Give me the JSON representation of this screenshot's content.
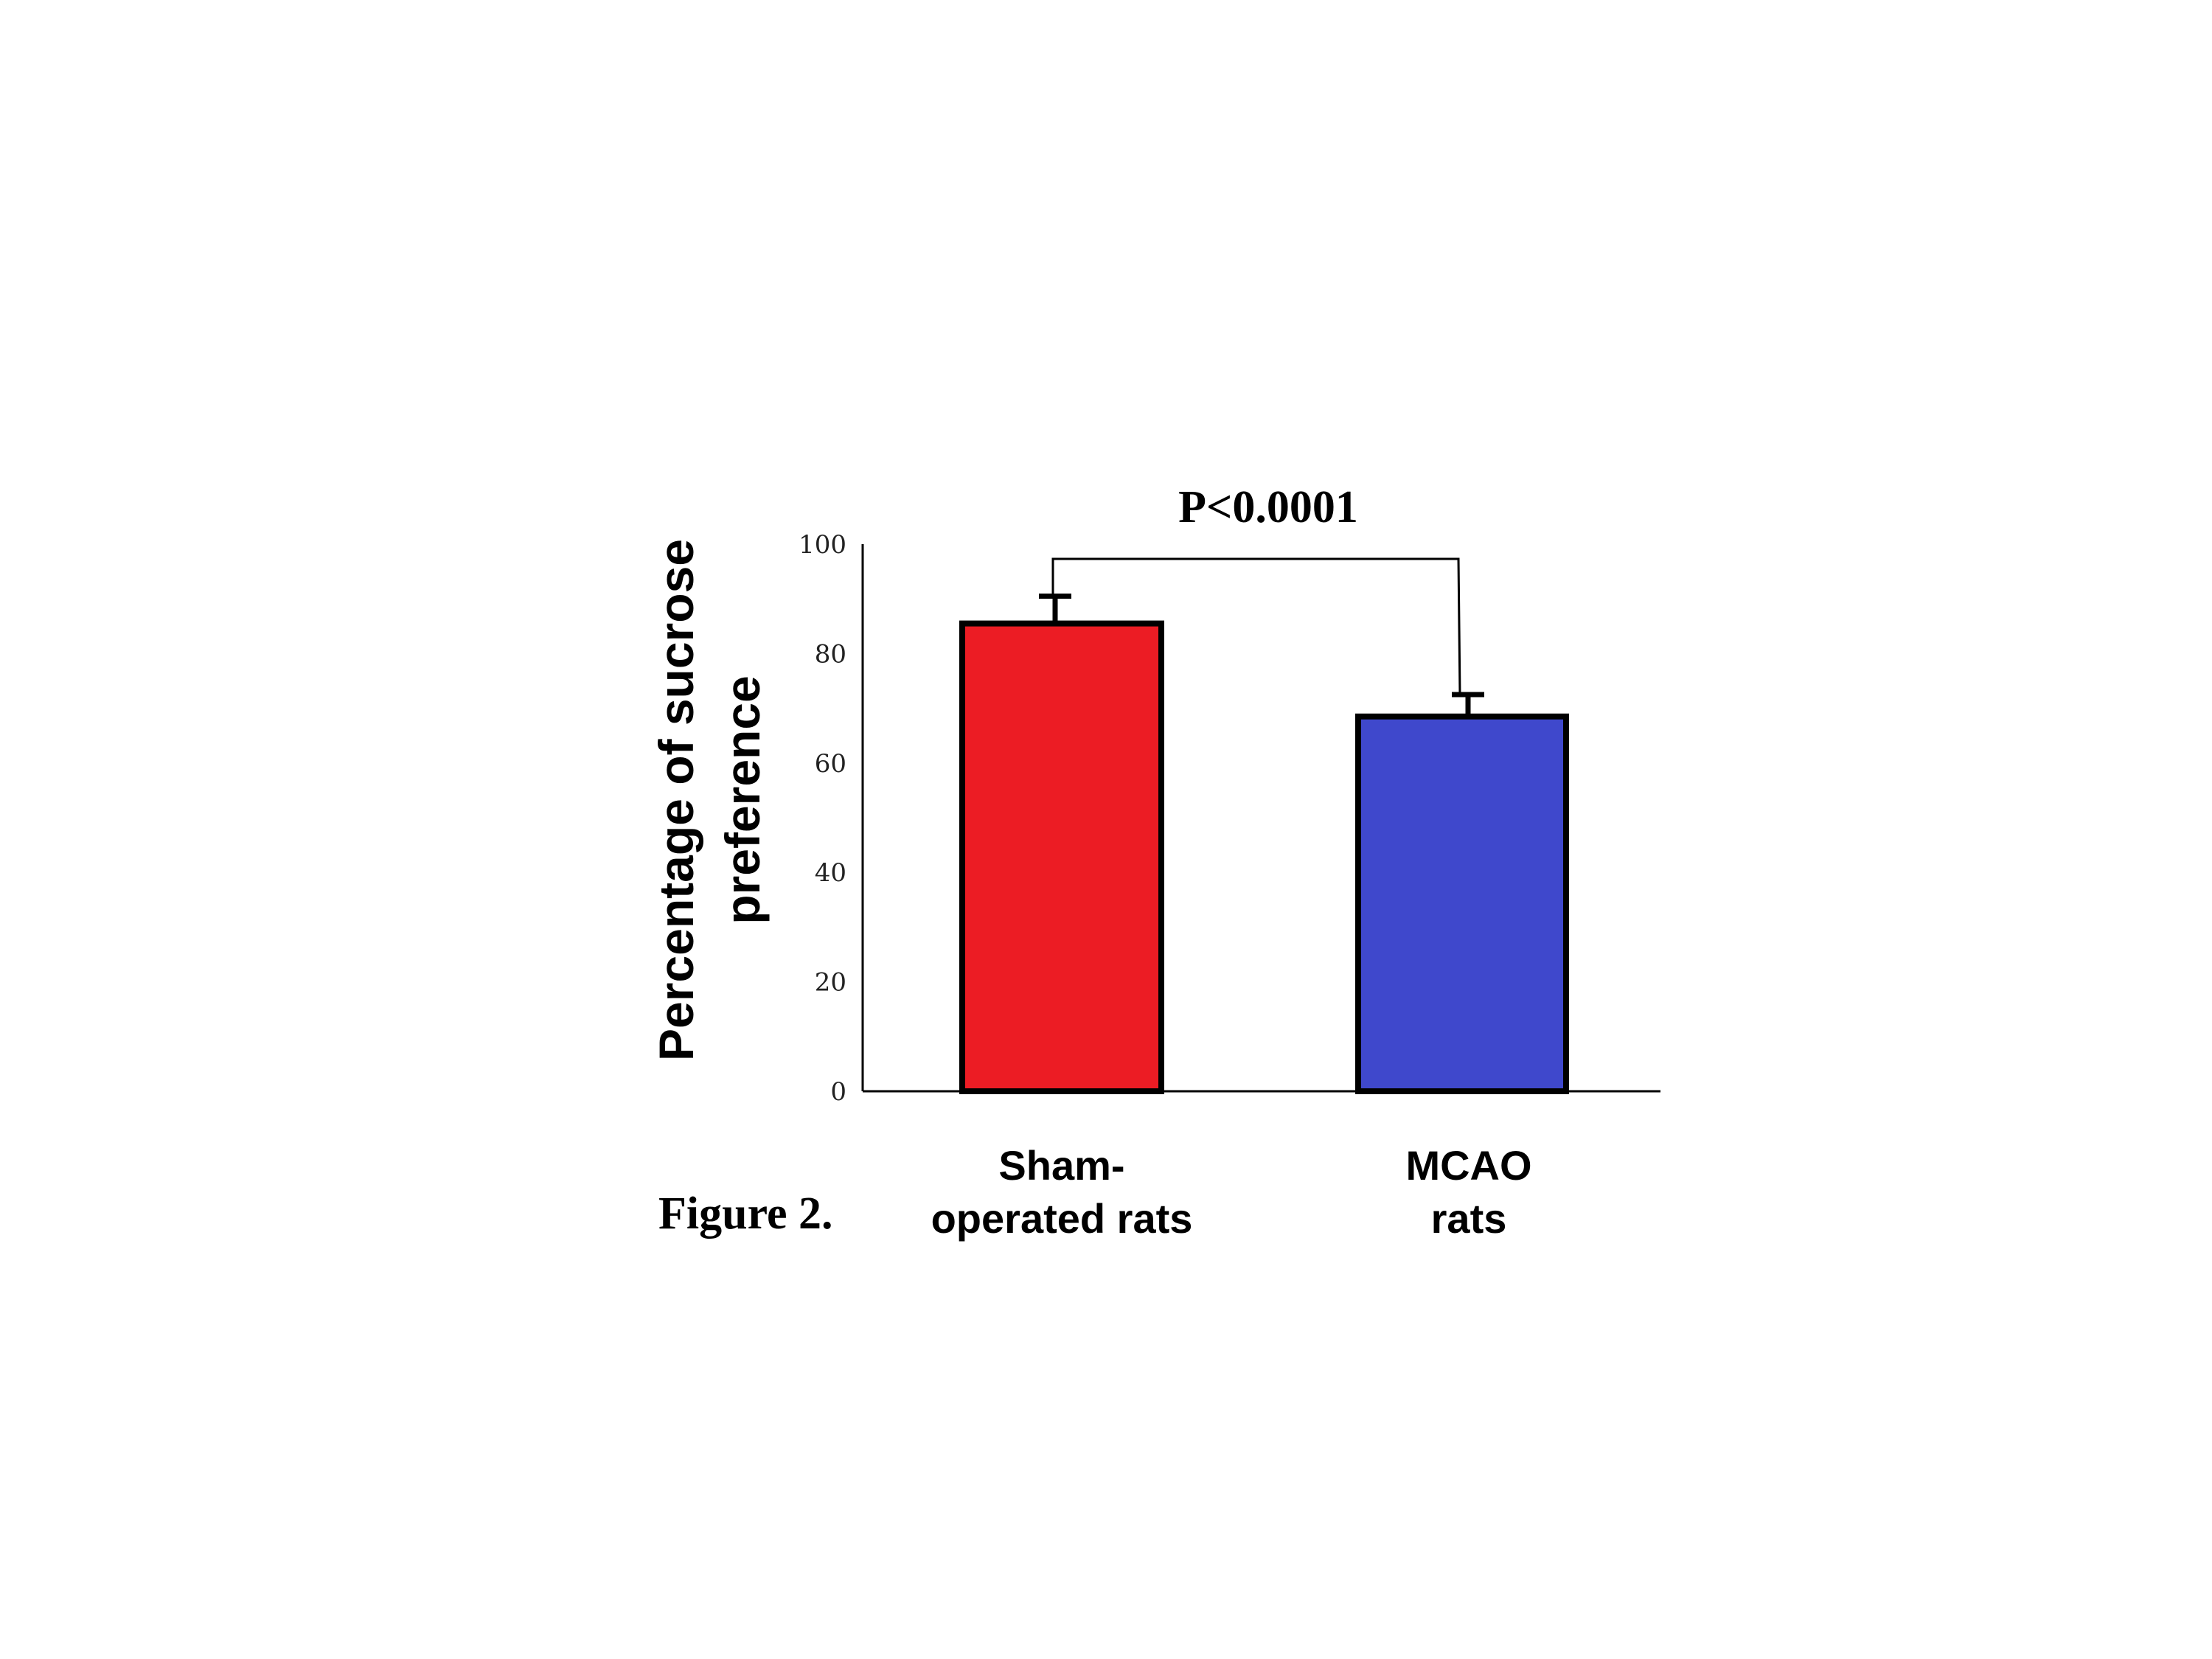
{
  "chart_data": {
    "type": "bar",
    "categories": [
      [
        "Sham-",
        "operated rats"
      ],
      [
        "MCAO",
        "rats"
      ]
    ],
    "values": [
      85.5,
      68.5
    ],
    "errors": [
      5,
      4
    ],
    "ylabel": [
      "Percentage of sucrose",
      "preference"
    ],
    "ylim": [
      0,
      100
    ],
    "yticks": [
      0,
      20,
      40,
      60,
      80,
      100
    ],
    "colors": [
      "#ec1c24",
      "#3f48cc"
    ],
    "significance": "P<0.0001",
    "caption": "Figure 2."
  }
}
